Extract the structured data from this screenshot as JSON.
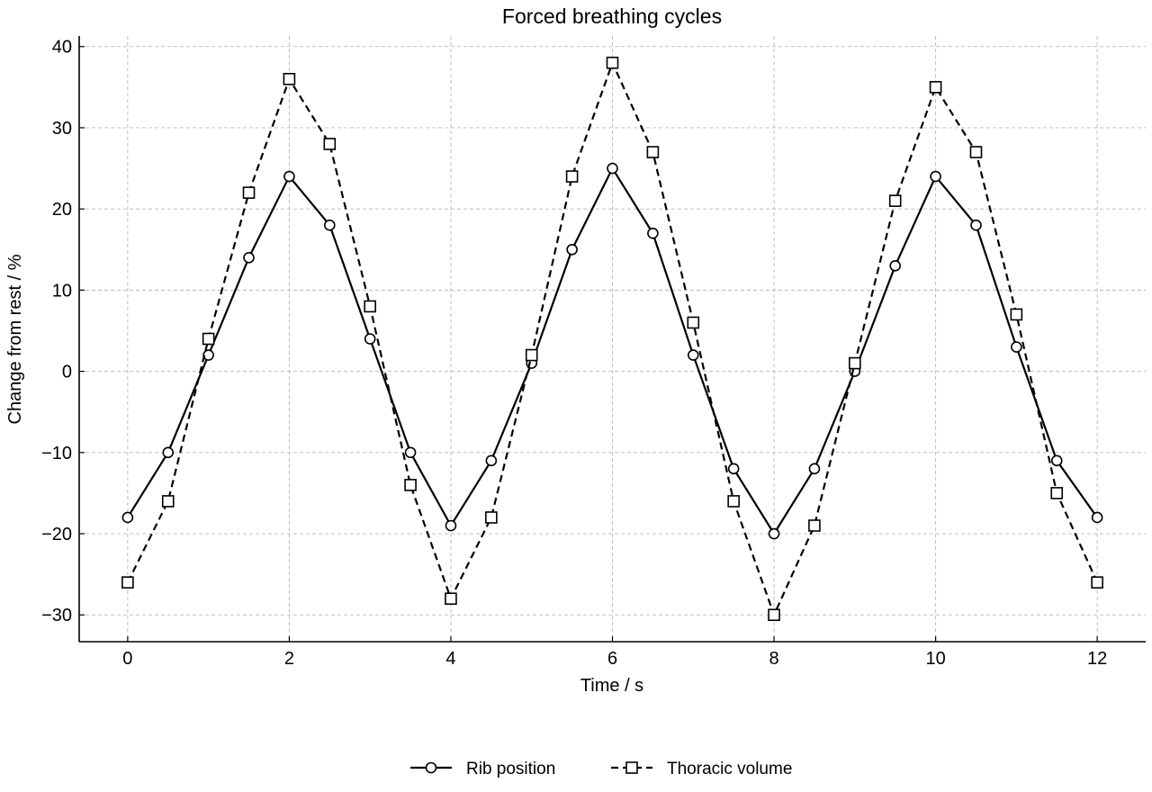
{
  "chart_data": {
    "type": "line",
    "title": "Forced breathing cycles",
    "xlabel": "Time / s",
    "ylabel": "Change from rest / %",
    "xlim": [
      -0.6,
      12.6
    ],
    "ylim": [
      -33.3,
      41.3
    ],
    "xticks": [
      0,
      2,
      4,
      6,
      8,
      10,
      12
    ],
    "yticks": [
      -30,
      -20,
      -10,
      0,
      10,
      20,
      30,
      40
    ],
    "grid": true,
    "legend": "bottom-center",
    "x": [
      0,
      0.5,
      1,
      1.5,
      2,
      2.5,
      3,
      3.5,
      4,
      4.5,
      5,
      5.5,
      6,
      6.5,
      7,
      7.5,
      8,
      8.5,
      9,
      9.5,
      10,
      10.5,
      11,
      11.5,
      12
    ],
    "series": [
      {
        "name": "Rib position",
        "marker": "circle",
        "line_style": "solid",
        "color": "#000000",
        "values": [
          -18,
          -10,
          2,
          14,
          24,
          18,
          4,
          -10,
          -19,
          -11,
          1,
          15,
          25,
          17,
          2,
          -12,
          -20,
          -12,
          0,
          13,
          24,
          18,
          3,
          -11,
          -18
        ]
      },
      {
        "name": "Thoracic volume",
        "marker": "square",
        "line_style": "dashed",
        "color": "#000000",
        "values": [
          -26,
          -16,
          4,
          22,
          36,
          28,
          8,
          -14,
          -28,
          -18,
          2,
          24,
          38,
          27,
          6,
          -16,
          -30,
          -19,
          1,
          21,
          35,
          27,
          7,
          -15,
          -26
        ]
      }
    ]
  }
}
